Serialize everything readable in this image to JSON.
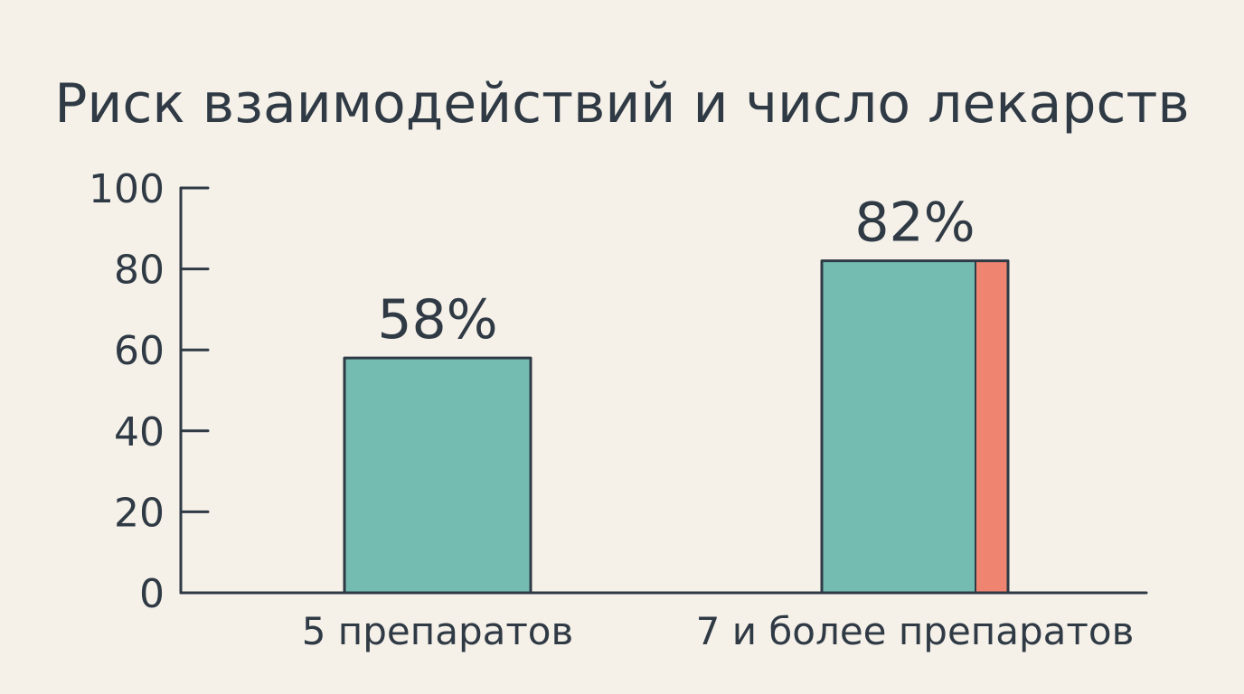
{
  "chart_data": {
    "type": "bar",
    "title": "Риск взаимодействий и число лекарств",
    "xlabel": "",
    "ylabel": "",
    "ylim": [
      0,
      100
    ],
    "yticks": [
      0,
      20,
      40,
      60,
      80,
      100
    ],
    "categories": [
      "5 препаратов",
      "7 и более препаратов"
    ],
    "values": [
      58,
      82
    ],
    "value_labels": [
      "58%",
      "82%"
    ],
    "grid": false,
    "legend": "none",
    "colors": {
      "background": "#f5f1e9",
      "bar": "#74bcb2",
      "bar_accent": "#ef8570",
      "stroke": "#2f3a45",
      "text": "#2f3a45"
    }
  }
}
